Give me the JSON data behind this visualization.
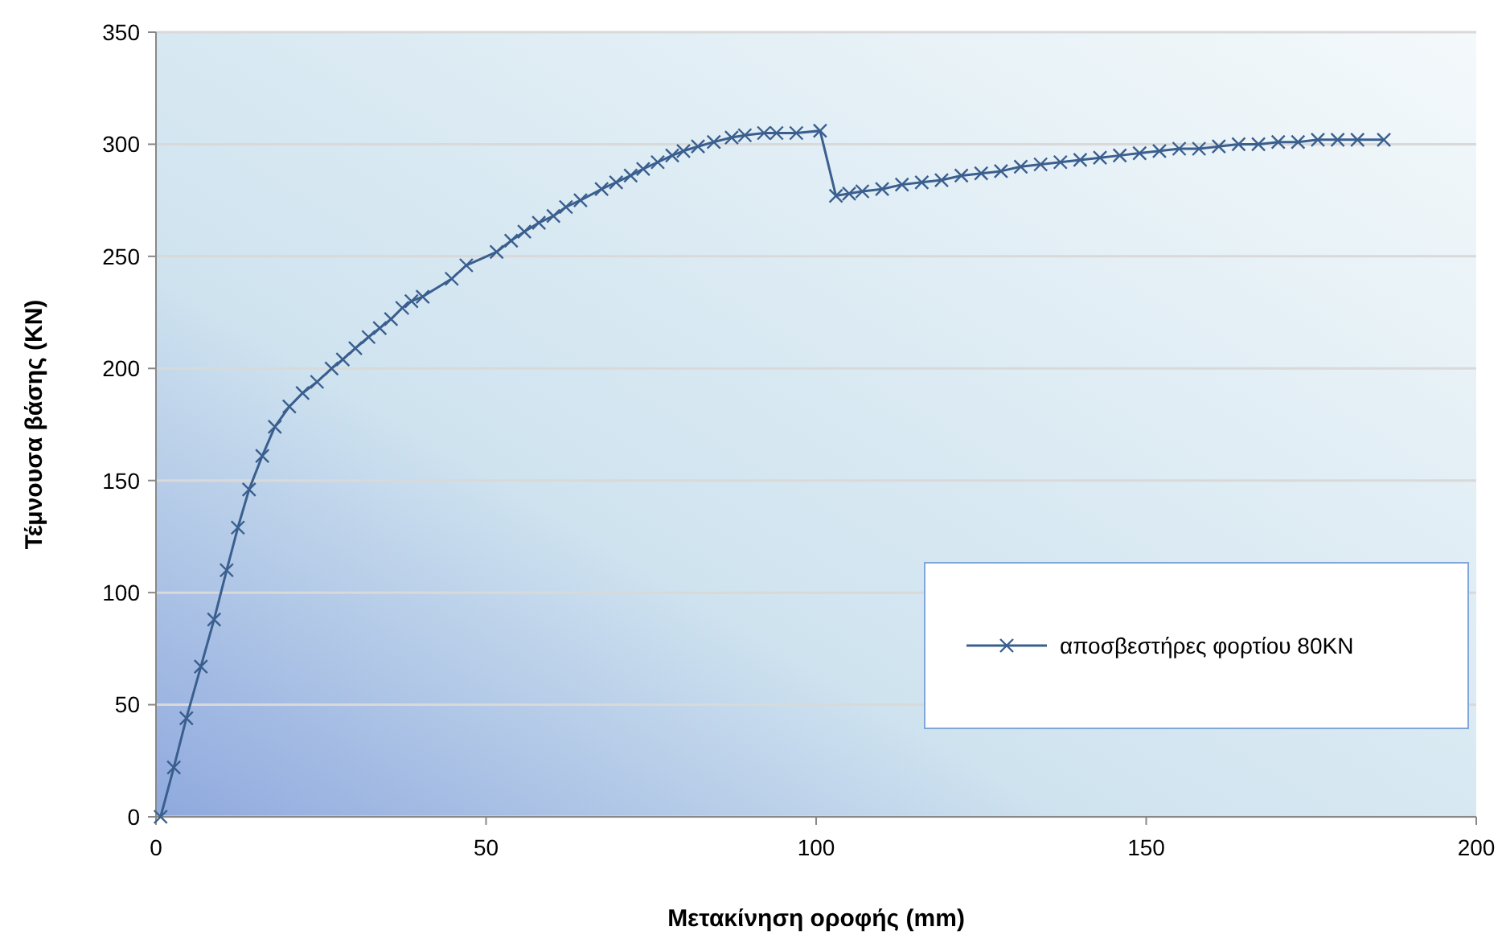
{
  "chart_data": {
    "type": "line",
    "xlabel": "Μετακίνηση οροφής (mm)",
    "ylabel": "Τέμνουσα βάσης (KN)",
    "xlim": [
      0,
      200
    ],
    "xticks": [
      0,
      50,
      100,
      150,
      200
    ],
    "ylim": [
      0,
      350
    ],
    "yticks": [
      0,
      50,
      100,
      150,
      200,
      250,
      300,
      350
    ],
    "grid": "y",
    "legend": "right",
    "marker": "cross",
    "line_style": "solid",
    "series": [
      {
        "name": "αποσβεστήρες φορτίου 80KN",
        "color": "#3a5f8f",
        "x": [
          0.7,
          2.7,
          4.6,
          6.8,
          8.8,
          10.7,
          12.4,
          14.1,
          16.1,
          18,
          20.2,
          22.2,
          24.4,
          26.6,
          28.3,
          30.2,
          32.2,
          33.9,
          35.6,
          37.3,
          38.7,
          40.4,
          44.8,
          47,
          51.6,
          53.8,
          55.8,
          58,
          60.2,
          62.1,
          64.3,
          67.5,
          69.7,
          71.9,
          73.8,
          76,
          78.2,
          79.9,
          82.1,
          84.5,
          87.2,
          89.2,
          92.1,
          94,
          97,
          100.6,
          103,
          105,
          107,
          110,
          113,
          116,
          119,
          122,
          125,
          128,
          131,
          134,
          137,
          140,
          143,
          146,
          149,
          152,
          155,
          158,
          161,
          164,
          167,
          170,
          173,
          176,
          179,
          182,
          186
        ],
        "values": [
          0,
          22,
          44,
          67,
          88,
          110,
          129,
          146,
          161,
          174,
          183,
          189,
          194,
          200,
          204,
          209,
          214,
          218,
          222,
          227,
          230,
          232,
          240,
          246,
          252,
          257,
          261,
          265,
          268,
          272,
          275,
          280,
          283,
          286,
          289,
          292,
          295,
          297,
          299,
          301,
          303,
          304,
          305,
          305,
          305,
          306,
          277,
          278,
          279,
          280,
          282,
          283,
          284,
          286,
          287,
          288,
          290,
          291,
          292,
          293,
          294,
          295,
          296,
          297,
          298,
          298,
          299,
          300,
          300,
          301,
          301,
          302,
          302,
          302,
          302
        ]
      }
    ]
  }
}
